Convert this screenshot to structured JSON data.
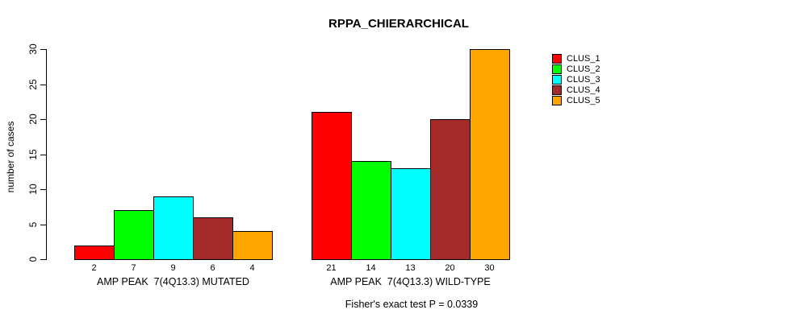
{
  "chart_data": {
    "type": "bar",
    "title": "RPPA_CHIERARCHICAL",
    "ylabel": "number of cases",
    "ylim": [
      0,
      30
    ],
    "yticks": [
      0,
      5,
      10,
      15,
      20,
      25,
      30
    ],
    "grid": false,
    "legend_position": "right-outside",
    "categories": [
      "AMP PEAK  7(4Q13.3) MUTATED",
      "AMP PEAK  7(4Q13.3) WILD-TYPE"
    ],
    "series": [
      {
        "name": "CLUS_1",
        "color": "#FF0000",
        "values": [
          2,
          21
        ]
      },
      {
        "name": "CLUS_2",
        "color": "#00FF00",
        "values": [
          7,
          14
        ]
      },
      {
        "name": "CLUS_3",
        "color": "#00FFFF",
        "values": [
          9,
          13
        ]
      },
      {
        "name": "CLUS_4",
        "color": "#A52A2A",
        "values": [
          6,
          20
        ]
      },
      {
        "name": "CLUS_5",
        "color": "#FFA500",
        "values": [
          4,
          30
        ]
      }
    ],
    "bar_value_labels_shown": true,
    "annotation": "Fisher's exact test P = 0.0339"
  }
}
